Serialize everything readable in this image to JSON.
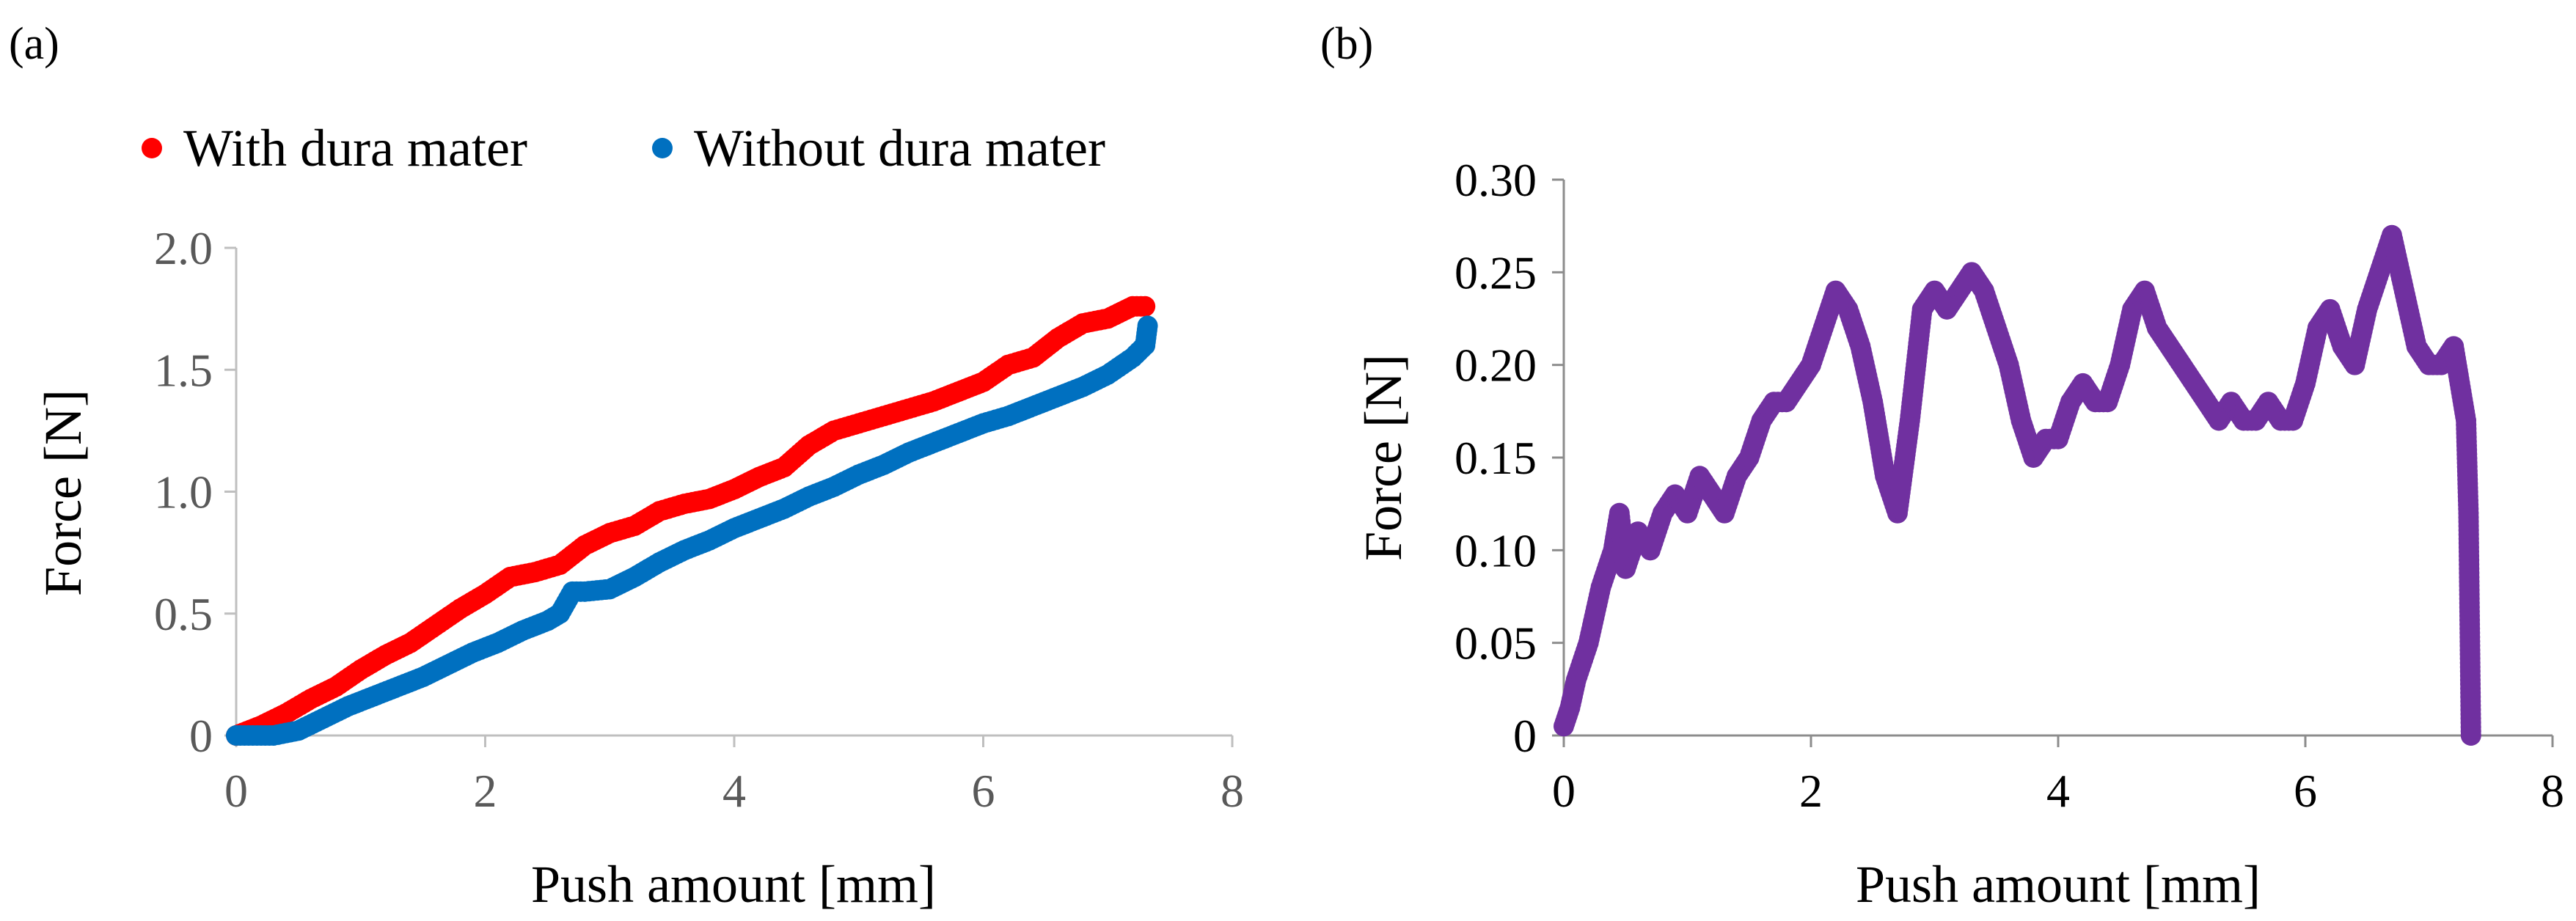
{
  "chart_data": [
    {
      "type": "scatter",
      "panel_label": "(a)",
      "title": "",
      "xlabel": "Push amount [mm]",
      "ylabel": "Force [N]",
      "xlim": [
        0,
        8
      ],
      "ylim": [
        0,
        2.0
      ],
      "x_ticks": [
        "0",
        "2",
        "4",
        "6",
        "8"
      ],
      "y_ticks": [
        "0",
        "0.5",
        "1.0",
        "1.5",
        "2.0"
      ],
      "legend_position": "top",
      "series": [
        {
          "name": "With dura mater",
          "color": "#ff0000",
          "points": [
            [
              0,
              0
            ],
            [
              0.2,
              0.04
            ],
            [
              0.4,
              0.09
            ],
            [
              0.6,
              0.15
            ],
            [
              0.8,
              0.2
            ],
            [
              1.0,
              0.27
            ],
            [
              1.2,
              0.33
            ],
            [
              1.4,
              0.38
            ],
            [
              1.6,
              0.45
            ],
            [
              1.8,
              0.52
            ],
            [
              2.0,
              0.58
            ],
            [
              2.2,
              0.65
            ],
            [
              2.4,
              0.67
            ],
            [
              2.6,
              0.7
            ],
            [
              2.8,
              0.78
            ],
            [
              3.0,
              0.83
            ],
            [
              3.2,
              0.86
            ],
            [
              3.4,
              0.92
            ],
            [
              3.6,
              0.95
            ],
            [
              3.8,
              0.97
            ],
            [
              4.0,
              1.01
            ],
            [
              4.2,
              1.06
            ],
            [
              4.4,
              1.1
            ],
            [
              4.6,
              1.19
            ],
            [
              4.8,
              1.25
            ],
            [
              5.0,
              1.28
            ],
            [
              5.2,
              1.31
            ],
            [
              5.4,
              1.34
            ],
            [
              5.6,
              1.37
            ],
            [
              5.8,
              1.41
            ],
            [
              6.0,
              1.45
            ],
            [
              6.2,
              1.52
            ],
            [
              6.4,
              1.55
            ],
            [
              6.6,
              1.63
            ],
            [
              6.8,
              1.69
            ],
            [
              7.0,
              1.71
            ],
            [
              7.2,
              1.76
            ],
            [
              7.3,
              1.76
            ]
          ]
        },
        {
          "name": "Without dura mater",
          "color": "#0070c0",
          "points": [
            [
              0,
              0
            ],
            [
              0.3,
              0
            ],
            [
              0.5,
              0.02
            ],
            [
              0.7,
              0.07
            ],
            [
              0.9,
              0.12
            ],
            [
              1.1,
              0.16
            ],
            [
              1.3,
              0.2
            ],
            [
              1.5,
              0.24
            ],
            [
              1.7,
              0.29
            ],
            [
              1.9,
              0.34
            ],
            [
              2.1,
              0.38
            ],
            [
              2.3,
              0.43
            ],
            [
              2.5,
              0.47
            ],
            [
              2.6,
              0.5
            ],
            [
              2.7,
              0.59
            ],
            [
              2.8,
              0.59
            ],
            [
              3.0,
              0.6
            ],
            [
              3.2,
              0.65
            ],
            [
              3.4,
              0.71
            ],
            [
              3.6,
              0.76
            ],
            [
              3.8,
              0.8
            ],
            [
              4.0,
              0.85
            ],
            [
              4.2,
              0.89
            ],
            [
              4.4,
              0.93
            ],
            [
              4.6,
              0.98
            ],
            [
              4.8,
              1.02
            ],
            [
              5.0,
              1.07
            ],
            [
              5.2,
              1.11
            ],
            [
              5.4,
              1.16
            ],
            [
              5.6,
              1.2
            ],
            [
              5.8,
              1.24
            ],
            [
              6.0,
              1.28
            ],
            [
              6.2,
              1.31
            ],
            [
              6.4,
              1.35
            ],
            [
              6.6,
              1.39
            ],
            [
              6.8,
              1.43
            ],
            [
              7.0,
              1.48
            ],
            [
              7.2,
              1.55
            ],
            [
              7.3,
              1.6
            ],
            [
              7.32,
              1.68
            ]
          ]
        }
      ]
    },
    {
      "type": "scatter",
      "panel_label": "(b)",
      "title": "",
      "xlabel": "Push amount [mm]",
      "ylabel": "Force [N]",
      "xlim": [
        0,
        8
      ],
      "ylim": [
        0,
        0.3
      ],
      "x_ticks": [
        "0",
        "2",
        "4",
        "6",
        "8"
      ],
      "y_ticks": [
        "0",
        "0.05",
        "0.10",
        "0.15",
        "0.20",
        "0.25",
        "0.30"
      ],
      "series": [
        {
          "name": "",
          "color": "#7030a0",
          "points": [
            [
              0,
              0.005
            ],
            [
              0.05,
              0.015
            ],
            [
              0.1,
              0.03
            ],
            [
              0.2,
              0.05
            ],
            [
              0.3,
              0.08
            ],
            [
              0.4,
              0.1
            ],
            [
              0.45,
              0.12
            ],
            [
              0.5,
              0.09
            ],
            [
              0.6,
              0.11
            ],
            [
              0.7,
              0.1
            ],
            [
              0.8,
              0.12
            ],
            [
              0.9,
              0.13
            ],
            [
              1.0,
              0.12
            ],
            [
              1.1,
              0.14
            ],
            [
              1.2,
              0.13
            ],
            [
              1.3,
              0.12
            ],
            [
              1.4,
              0.14
            ],
            [
              1.5,
              0.15
            ],
            [
              1.6,
              0.17
            ],
            [
              1.7,
              0.18
            ],
            [
              1.8,
              0.18
            ],
            [
              1.9,
              0.19
            ],
            [
              2.0,
              0.2
            ],
            [
              2.1,
              0.22
            ],
            [
              2.2,
              0.24
            ],
            [
              2.3,
              0.23
            ],
            [
              2.4,
              0.21
            ],
            [
              2.5,
              0.18
            ],
            [
              2.6,
              0.14
            ],
            [
              2.7,
              0.12
            ],
            [
              2.8,
              0.17
            ],
            [
              2.9,
              0.23
            ],
            [
              3.0,
              0.24
            ],
            [
              3.1,
              0.23
            ],
            [
              3.2,
              0.24
            ],
            [
              3.3,
              0.25
            ],
            [
              3.4,
              0.24
            ],
            [
              3.5,
              0.22
            ],
            [
              3.6,
              0.2
            ],
            [
              3.7,
              0.17
            ],
            [
              3.8,
              0.15
            ],
            [
              3.9,
              0.16
            ],
            [
              4.0,
              0.16
            ],
            [
              4.1,
              0.18
            ],
            [
              4.2,
              0.19
            ],
            [
              4.3,
              0.18
            ],
            [
              4.4,
              0.18
            ],
            [
              4.5,
              0.2
            ],
            [
              4.6,
              0.23
            ],
            [
              4.7,
              0.24
            ],
            [
              4.8,
              0.22
            ],
            [
              4.9,
              0.21
            ],
            [
              5.0,
              0.2
            ],
            [
              5.1,
              0.19
            ],
            [
              5.2,
              0.18
            ],
            [
              5.3,
              0.17
            ],
            [
              5.4,
              0.18
            ],
            [
              5.5,
              0.17
            ],
            [
              5.6,
              0.17
            ],
            [
              5.7,
              0.18
            ],
            [
              5.8,
              0.17
            ],
            [
              5.9,
              0.17
            ],
            [
              6.0,
              0.19
            ],
            [
              6.1,
              0.22
            ],
            [
              6.2,
              0.23
            ],
            [
              6.3,
              0.21
            ],
            [
              6.4,
              0.2
            ],
            [
              6.5,
              0.23
            ],
            [
              6.6,
              0.25
            ],
            [
              6.7,
              0.27
            ],
            [
              6.8,
              0.24
            ],
            [
              6.9,
              0.21
            ],
            [
              7.0,
              0.2
            ],
            [
              7.1,
              0.2
            ],
            [
              7.2,
              0.21
            ],
            [
              7.3,
              0.17
            ],
            [
              7.32,
              0.12
            ],
            [
              7.33,
              0.06
            ],
            [
              7.34,
              0.0
            ]
          ]
        }
      ]
    }
  ]
}
